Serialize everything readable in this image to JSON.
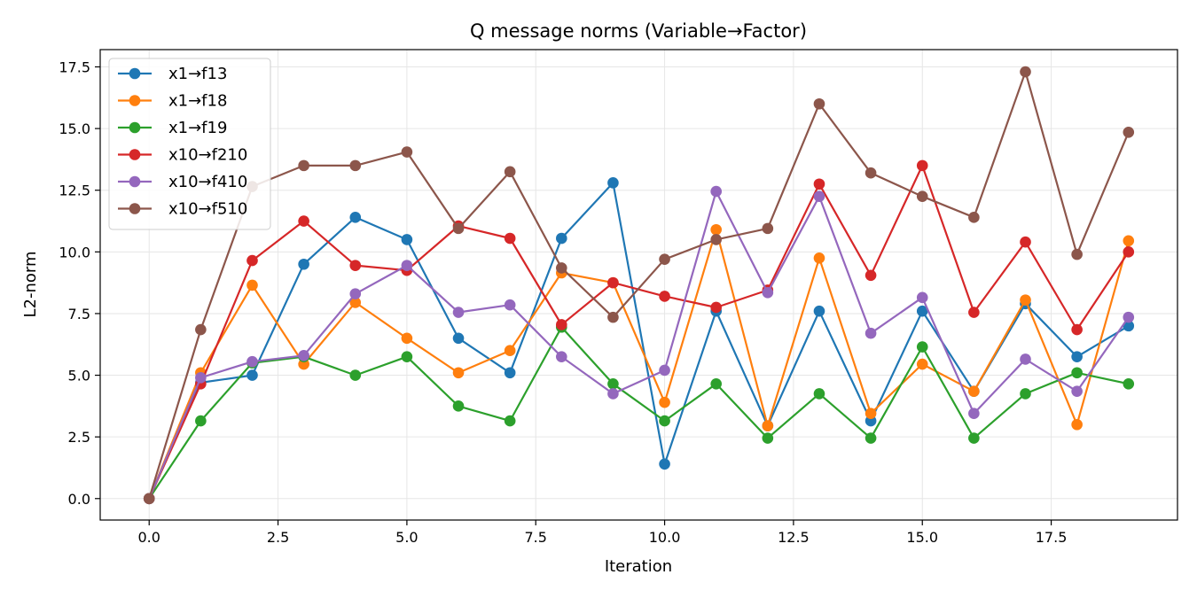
{
  "chart_data": {
    "type": "line",
    "title": "Q message norms (Variable→Factor)",
    "xlabel": "Iteration",
    "ylabel": "L2-norm",
    "xlim": [
      -0.95,
      19.95
    ],
    "ylim": [
      -0.87,
      18.2
    ],
    "xticks": [
      0.0,
      2.5,
      5.0,
      7.5,
      10.0,
      12.5,
      15.0,
      17.5
    ],
    "yticks": [
      0.0,
      2.5,
      5.0,
      7.5,
      10.0,
      12.5,
      15.0,
      17.5
    ],
    "grid": true,
    "legend": "top-left",
    "x": [
      0,
      1,
      2,
      3,
      4,
      5,
      6,
      7,
      8,
      9,
      10,
      11,
      12,
      13,
      14,
      15,
      16,
      17,
      18,
      19
    ],
    "series": [
      {
        "name": "x1→f13",
        "color": "#1f77b4",
        "values": [
          0,
          4.7,
          5.0,
          9.5,
          11.4,
          10.5,
          6.5,
          5.1,
          10.55,
          12.8,
          1.4,
          7.6,
          2.95,
          7.6,
          3.15,
          7.6,
          4.35,
          7.9,
          5.75,
          7.0
        ]
      },
      {
        "name": "x1→f18",
        "color": "#ff7f0e",
        "values": [
          0,
          5.1,
          8.65,
          5.45,
          7.95,
          6.5,
          5.1,
          6.0,
          9.15,
          8.75,
          3.9,
          10.9,
          2.95,
          9.75,
          3.45,
          5.45,
          4.35,
          8.05,
          3.0,
          10.45
        ]
      },
      {
        "name": "x1→f19",
        "color": "#2ca02c",
        "values": [
          0,
          3.15,
          5.5,
          5.75,
          5.0,
          5.75,
          3.75,
          3.15,
          6.95,
          4.65,
          3.15,
          4.65,
          2.45,
          4.25,
          2.45,
          6.15,
          2.45,
          4.25,
          5.1,
          4.65
        ]
      },
      {
        "name": "x10→f210",
        "color": "#d62728",
        "values": [
          0,
          4.65,
          9.65,
          11.25,
          9.45,
          9.25,
          11.05,
          10.55,
          7.05,
          8.75,
          8.2,
          7.75,
          8.45,
          12.75,
          9.05,
          13.5,
          7.55,
          10.4,
          6.85,
          10.0
        ]
      },
      {
        "name": "x10→f410",
        "color": "#9467bd",
        "values": [
          0,
          4.9,
          5.55,
          5.8,
          8.3,
          9.45,
          7.55,
          7.85,
          5.75,
          4.25,
          5.2,
          12.45,
          8.35,
          12.25,
          6.7,
          8.15,
          3.45,
          5.65,
          4.35,
          7.35
        ]
      },
      {
        "name": "x10→f510",
        "color": "#8c564b",
        "values": [
          0,
          6.85,
          12.65,
          13.5,
          13.5,
          14.05,
          10.95,
          13.25,
          9.35,
          7.35,
          9.7,
          10.5,
          10.95,
          16.0,
          13.2,
          12.25,
          11.4,
          17.3,
          9.9,
          14.85
        ]
      }
    ]
  }
}
